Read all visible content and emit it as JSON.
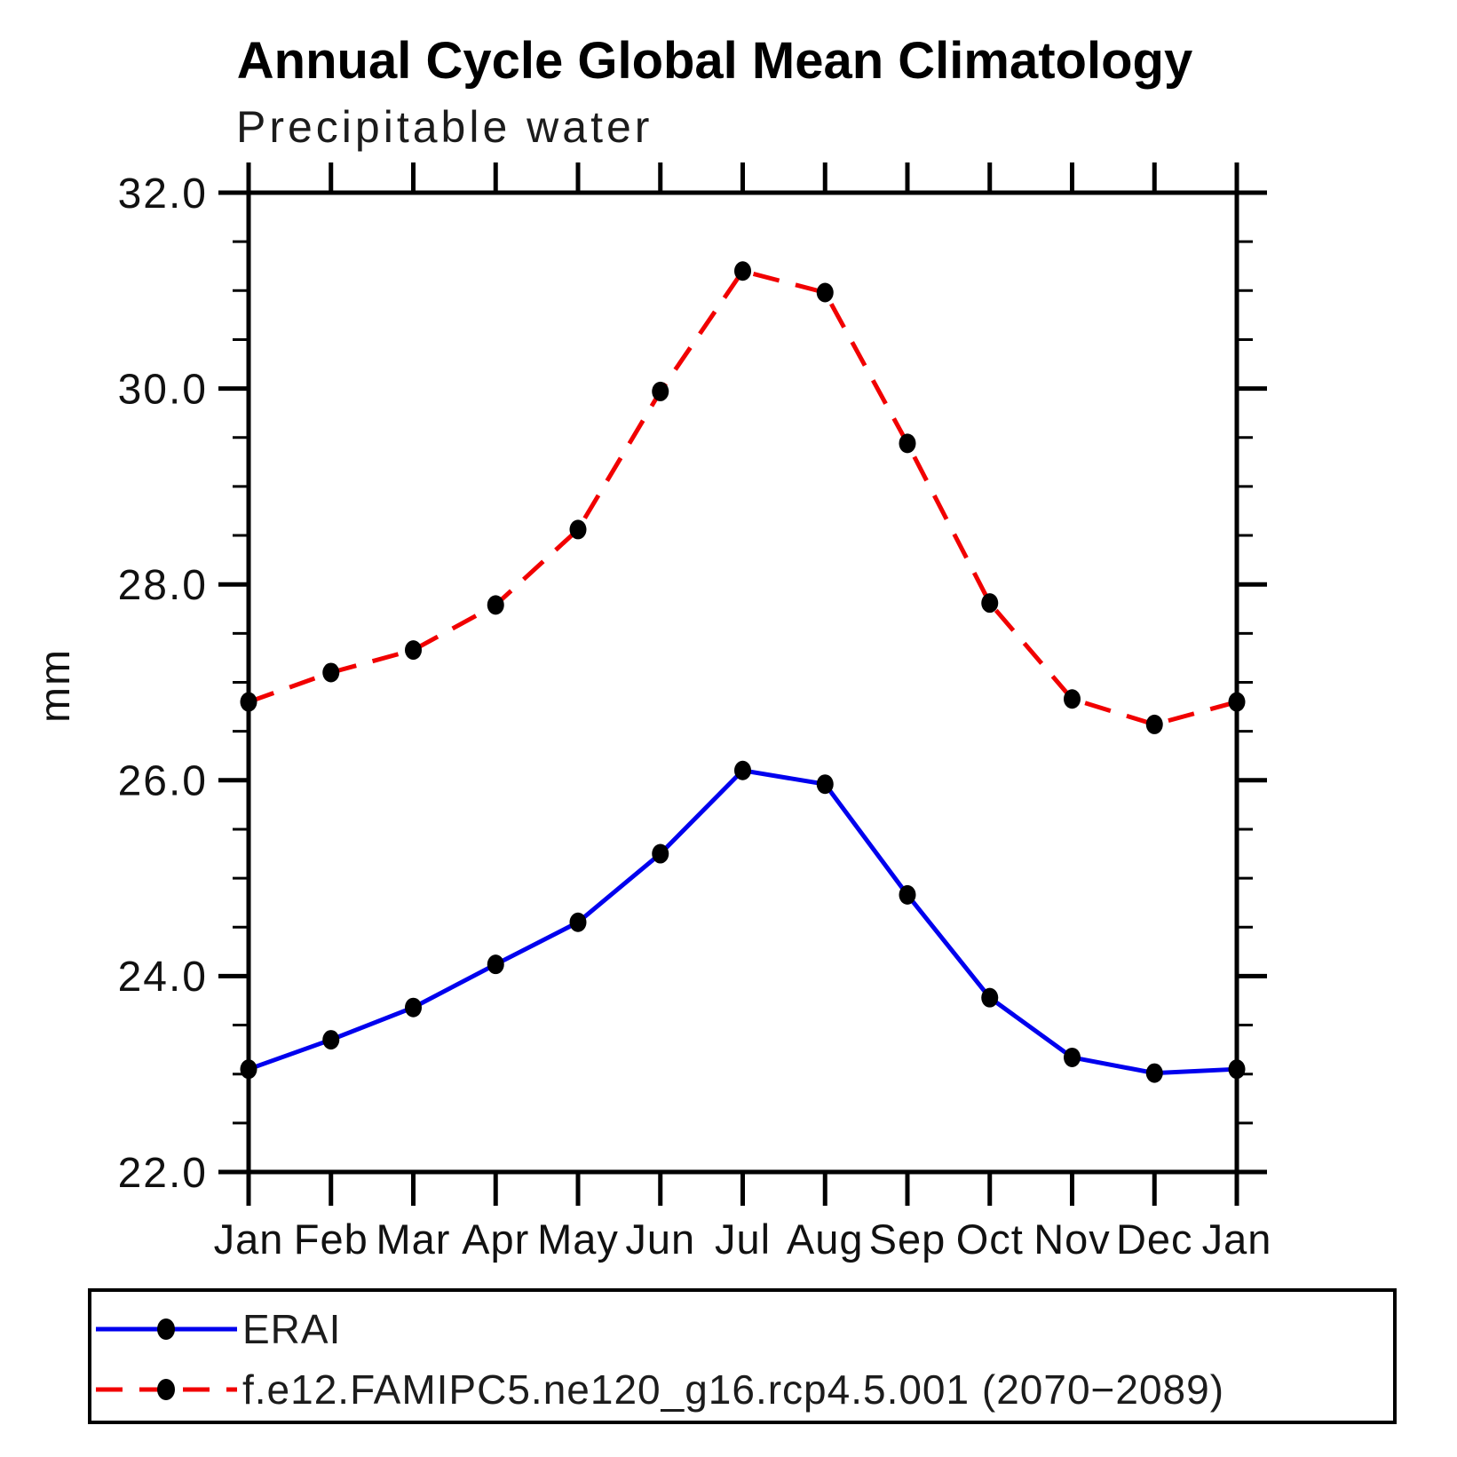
{
  "title": "Annual Cycle Global Mean Climatology",
  "subtitle": "Precipitable water",
  "ylabel": "mm",
  "legend": {
    "entries": [
      {
        "label": "ERAI",
        "color": "#0000ee",
        "style": "solid"
      },
      {
        "label": "f.e12.FAMIPC5.ne120_g16.rcp4.5.001 (2070−2089)",
        "color": "#f10000",
        "style": "dashed"
      }
    ]
  },
  "chart_data": {
    "type": "line",
    "x": [
      "Jan",
      "Feb",
      "Mar",
      "Apr",
      "May",
      "Jun",
      "Jul",
      "Aug",
      "Sep",
      "Oct",
      "Nov",
      "Dec",
      "Jan"
    ],
    "series": [
      {
        "name": "ERAI",
        "color": "#0000ee",
        "dash": "solid",
        "marker": "circle",
        "marker_color": "#000000",
        "values": [
          23.05,
          23.35,
          23.68,
          24.12,
          24.55,
          25.25,
          26.1,
          25.96,
          24.83,
          23.78,
          23.17,
          23.01,
          23.05
        ]
      },
      {
        "name": "f.e12.FAMIPC5.ne120_g16.rcp4.5.001 (2070−2089)",
        "color": "#f10000",
        "dash": "dashed",
        "marker": "circle",
        "marker_color": "#000000",
        "values": [
          26.8,
          27.1,
          27.33,
          27.79,
          28.56,
          29.97,
          31.2,
          30.98,
          29.44,
          27.81,
          26.83,
          26.57,
          26.8
        ]
      }
    ],
    "ylim": [
      22.0,
      32.0
    ],
    "ytick_major": [
      22.0,
      24.0,
      26.0,
      28.0,
      30.0,
      32.0
    ],
    "ytick_minor_step": 0.5,
    "ytick_label_format": "one_decimal",
    "xlabel": "",
    "ylabel": "mm",
    "grid": false,
    "legend_position": "bottom"
  }
}
